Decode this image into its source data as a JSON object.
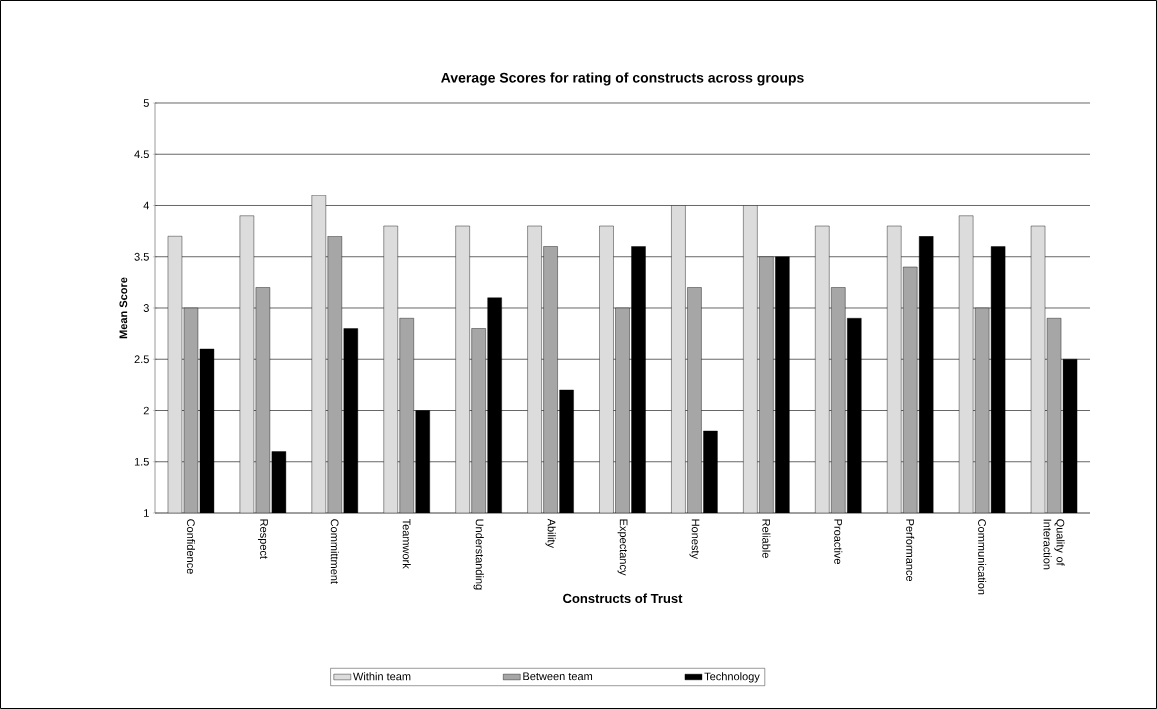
{
  "chart_data": {
    "type": "bar",
    "title": "Average Scores for rating of constructs across groups",
    "xlabel": "Constructs of Trust",
    "ylabel": "Mean Score",
    "categories": [
      "Confidence",
      "Respect",
      "Committment",
      "Teamwork",
      "Understanding",
      "Ability",
      "Expectancy",
      "Honesty",
      "Reliable",
      "Proactive",
      "Performance",
      "Communication",
      "Quality of Interaction"
    ],
    "series": [
      {
        "name": "Within team",
        "color": "#dcdcdc",
        "values": [
          3.7,
          3.9,
          4.1,
          3.8,
          3.8,
          3.8,
          3.8,
          4.0,
          4.0,
          3.8,
          3.8,
          3.9,
          3.8
        ]
      },
      {
        "name": "Between team",
        "color": "#a6a6a6",
        "values": [
          3.0,
          3.2,
          3.7,
          2.9,
          2.8,
          3.6,
          3.0,
          3.2,
          3.5,
          3.2,
          3.4,
          3.0,
          2.9
        ]
      },
      {
        "name": "Technology",
        "color": "#000000",
        "values": [
          2.6,
          1.6,
          2.8,
          2.0,
          3.1,
          2.2,
          3.6,
          1.8,
          3.5,
          2.9,
          3.7,
          3.6,
          2.5
        ]
      }
    ],
    "ylim": [
      1,
      5
    ],
    "yticks": [
      1,
      1.5,
      2,
      2.5,
      3,
      3.5,
      4,
      4.5,
      5
    ],
    "grid": "y",
    "legend": "bottom"
  }
}
